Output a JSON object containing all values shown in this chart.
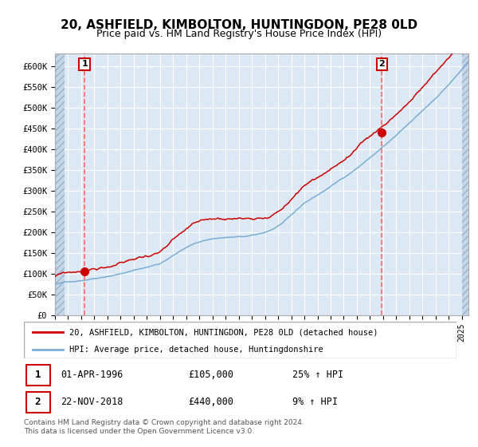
{
  "title": "20, ASHFIELD, KIMBOLTON, HUNTINGDON, PE28 0LD",
  "subtitle": "Price paid vs. HM Land Registry's House Price Index (HPI)",
  "title_fontsize": 11,
  "subtitle_fontsize": 9,
  "plot_bg_color": "#dce9f5",
  "ylim": [
    0,
    630000
  ],
  "yticks": [
    0,
    50000,
    100000,
    150000,
    200000,
    250000,
    300000,
    350000,
    400000,
    450000,
    500000,
    550000,
    600000
  ],
  "ytick_labels": [
    "£0",
    "£50K",
    "£100K",
    "£150K",
    "£200K",
    "£250K",
    "£300K",
    "£350K",
    "£400K",
    "£450K",
    "£500K",
    "£550K",
    "£600K"
  ],
  "sale1_date_num": 1996.25,
  "sale1_price": 105000,
  "sale2_date_num": 2018.9,
  "sale2_price": 440000,
  "legend_line1": "20, ASHFIELD, KIMBOLTON, HUNTINGDON, PE28 0LD (detached house)",
  "legend_line2": "HPI: Average price, detached house, Huntingdonshire",
  "line1_color": "#cc0000",
  "line2_color": "#7aadd4",
  "marker_color": "#cc0000",
  "dashed_color": "#ff6666",
  "annotation1_date": "01-APR-1996",
  "annotation1_price": "£105,000",
  "annotation1_hpi": "25% ↑ HPI",
  "annotation2_date": "22-NOV-2018",
  "annotation2_price": "£440,000",
  "annotation2_hpi": "9% ↑ HPI",
  "footer": "Contains HM Land Registry data © Crown copyright and database right 2024.\nThis data is licensed under the Open Government Licence v3.0.",
  "xmin": 1994.0,
  "xmax": 2025.5,
  "hatch_left_end": 1994.75,
  "hatch_right_start": 2025.0
}
